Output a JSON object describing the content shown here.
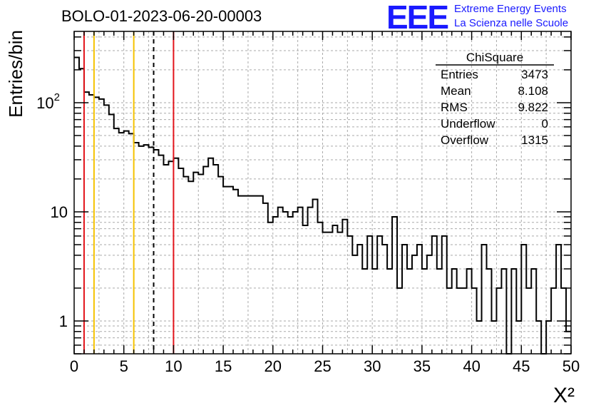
{
  "chart_data": {
    "type": "bar",
    "style": "step-histogram",
    "title": "BOLO-01-2023-06-20-00003",
    "xlabel": "X²",
    "ylabel": "Entries/bin",
    "xlim": [
      0,
      50
    ],
    "ylim": [
      0.5,
      450
    ],
    "yscale": "log",
    "grid": true,
    "bin_width": 0.5,
    "xticks": [
      "0",
      "5",
      "10",
      "15",
      "20",
      "25",
      "30",
      "35",
      "40",
      "45",
      "50"
    ],
    "yticks": [
      {
        "value": 1,
        "label": "1"
      },
      {
        "value": 10,
        "label": "10"
      },
      {
        "value": 100,
        "label": "10",
        "sup": "2"
      }
    ],
    "values": [
      260,
      205,
      125,
      118,
      112,
      108,
      95,
      78,
      58,
      53,
      55,
      52,
      43,
      40,
      41,
      39,
      37,
      33,
      27,
      29,
      31,
      25,
      21,
      19,
      23,
      22,
      26,
      31,
      27,
      21,
      17,
      17,
      16,
      14,
      14,
      14,
      14,
      14,
      12,
      8,
      9,
      11,
      10,
      9,
      10,
      11,
      7.5,
      11,
      13,
      8,
      6.5,
      6.5,
      7.5,
      6.5,
      8.5,
      6,
      4,
      5,
      3,
      6,
      3,
      6,
      5,
      3,
      9,
      2,
      5,
      3,
      4,
      5,
      3,
      4,
      6,
      3,
      6,
      2,
      3,
      2,
      2,
      3,
      2,
      1,
      5,
      3,
      1,
      2,
      3,
      0.05,
      3,
      1,
      5,
      2,
      3,
      1,
      0.05,
      1,
      2,
      5,
      2,
      0.8
    ],
    "series": [
      {
        "name": "ChiSquare"
      }
    ],
    "vertical_lines": [
      {
        "x": 1,
        "color": "#e3141b",
        "style": "solid"
      },
      {
        "x": 2,
        "color": "#f5c200",
        "style": "solid"
      },
      {
        "x": 6,
        "color": "#f5c200",
        "style": "solid"
      },
      {
        "x": 8,
        "color": "#000000",
        "style": "dashed"
      },
      {
        "x": 10,
        "color": "#e3141b",
        "style": "solid"
      }
    ],
    "stats_box": {
      "title": "ChiSquare",
      "rows": [
        {
          "label": "Entries",
          "value": "3473"
        },
        {
          "label": "Mean",
          "value": "8.108"
        },
        {
          "label": "RMS",
          "value": "9.822"
        },
        {
          "label": "Underflow",
          "value": "0"
        },
        {
          "label": "Overflow",
          "value": "1315"
        }
      ]
    }
  },
  "logo": {
    "mark": "EEE",
    "line1": "Extreme Energy Events",
    "line2": "La Scienza nelle Scuole",
    "color": "#1a1aff"
  }
}
